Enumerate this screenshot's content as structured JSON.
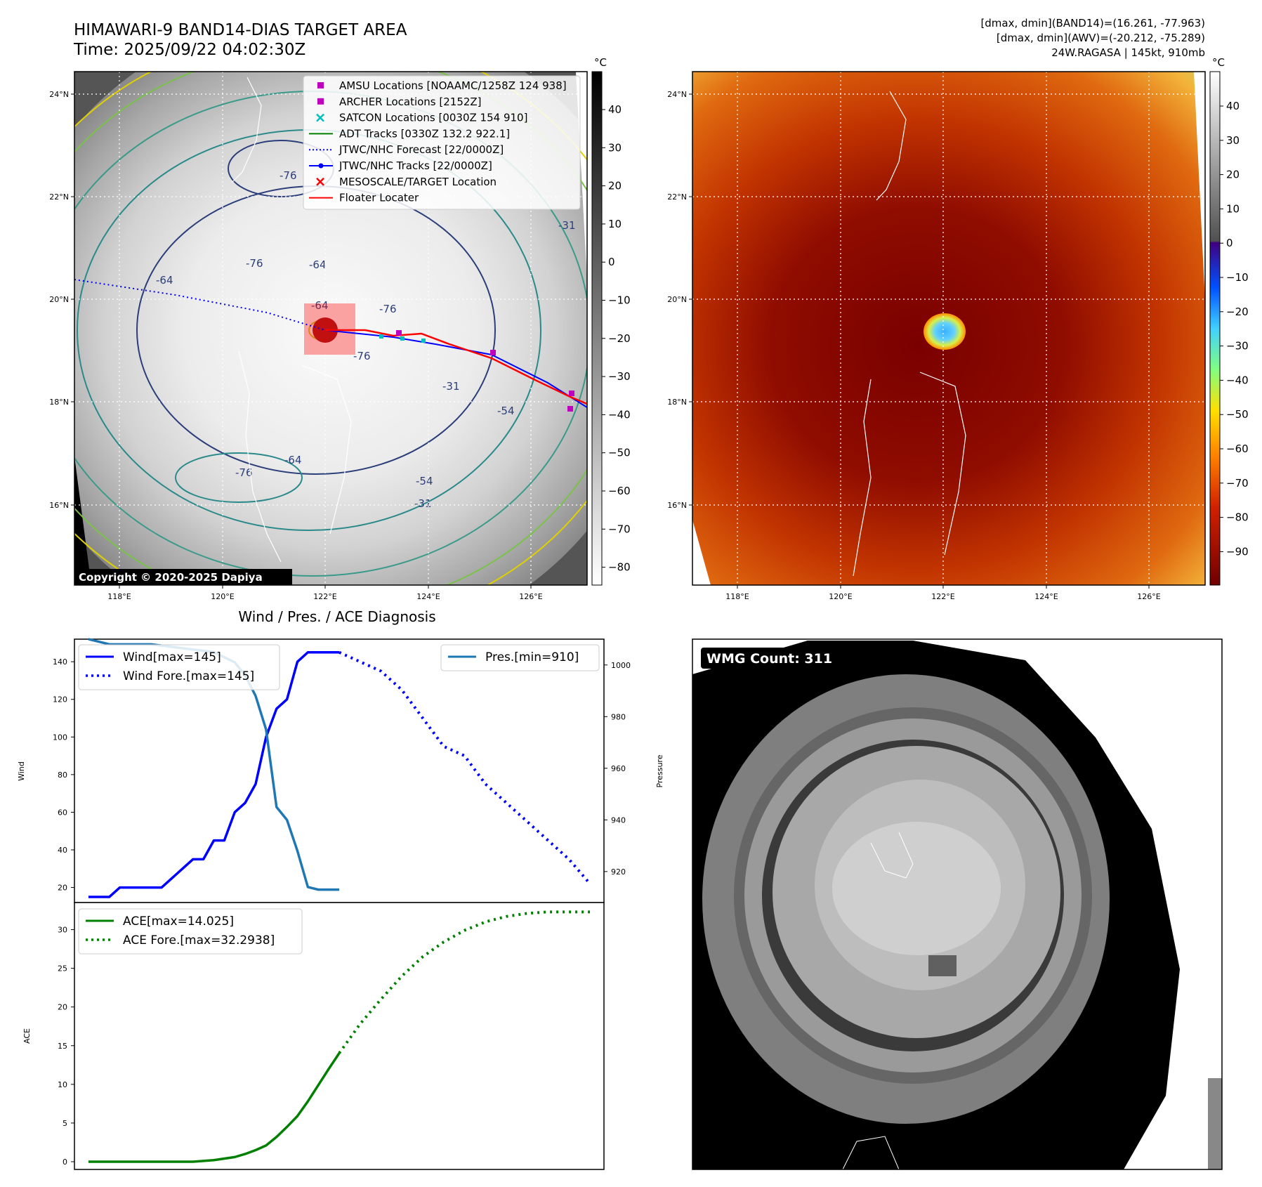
{
  "header": {
    "title_line1": "HIMAWARI-9 BAND14-DIAS TARGET AREA",
    "title_line2": "Time: 2025/09/22 04:02:30Z",
    "info_line1": "[dmax, dmin](BAND14)=(16.261, -77.963)",
    "info_line2": "[dmax, dmin](AWV)=(-20.212, -75.289)",
    "info_line3": "24W.RAGASA | 145kt, 910mb"
  },
  "map_axes": {
    "lon_ticks": [
      "118°E",
      "120°E",
      "122°E",
      "124°E",
      "126°E"
    ],
    "lat_ticks": [
      "24°N",
      "22°N",
      "20°N",
      "18°N",
      "16°N"
    ],
    "colorbar_unit": "°C",
    "ir_colorbar_ticks": [
      "40",
      "30",
      "20",
      "10",
      "0",
      "−10",
      "−20",
      "−30",
      "−40",
      "−50",
      "−60",
      "−70",
      "−80"
    ],
    "awv_colorbar_ticks": [
      "40",
      "30",
      "20",
      "10",
      "0",
      "−10",
      "−20",
      "−30",
      "−40",
      "−50",
      "−60",
      "−70",
      "−80",
      "−90"
    ],
    "contour_labels": [
      "-76",
      "-76",
      "-64",
      "-64",
      "-76",
      "-76",
      "-64",
      "-54",
      "-31",
      "-54",
      "-31",
      "-76",
      "-31",
      "-64"
    ],
    "copyright": "Copyright © 2020-2025 Dapiya"
  },
  "map_legend": [
    {
      "label": "AMSU Locations [NOAAMC/1258Z 124 938]",
      "color": "#bf00bf",
      "kind": "square"
    },
    {
      "label": "ARCHER Locations [2152Z]",
      "color": "#bf00bf",
      "kind": "square"
    },
    {
      "label": "SATCON Locations [0030Z 154 910]",
      "color": "#00bfbf",
      "kind": "x"
    },
    {
      "label": "ADT Tracks [0330Z 132.2 922.1]",
      "color": "#008000",
      "kind": "line"
    },
    {
      "label": "JTWC/NHC Forecast [22/0000Z]",
      "color": "#0000ff",
      "kind": "dotted"
    },
    {
      "label": "JTWC/NHC Tracks [22/0000Z]",
      "color": "#0000ff",
      "kind": "linedot"
    },
    {
      "label": "MESOSCALE/TARGET Location",
      "color": "#ff0000",
      "kind": "x"
    },
    {
      "label": "Floater Locater",
      "color": "#ff0000",
      "kind": "line"
    }
  ],
  "wmg": {
    "label": "WMG Count: 311"
  },
  "colors": {
    "wind": "#0000ff",
    "pres": "#1f77b4",
    "ace": "#008000"
  },
  "chart_data": [
    {
      "type": "line",
      "title": "Wind / Pres. / ACE Diagnosis",
      "ylabel": "Wind",
      "ylabel_right": "Pressure",
      "ylim": [
        12,
        152
      ],
      "ylim_right": [
        908,
        1010
      ],
      "x_range": [
        0,
        48
      ],
      "yticks": [
        20,
        40,
        60,
        80,
        100,
        120,
        140
      ],
      "yticks_right": [
        920,
        940,
        960,
        980,
        1000
      ],
      "series": [
        {
          "name": "Wind[max=145]",
          "axis": "left",
          "style": "solid",
          "x": [
            0,
            2,
            3,
            4,
            5,
            6,
            7,
            8,
            9,
            10,
            11,
            12,
            13,
            14,
            15,
            16,
            17,
            18,
            19,
            20,
            21,
            22,
            23,
            24
          ],
          "values": [
            15,
            15,
            20,
            20,
            20,
            20,
            20,
            25,
            30,
            35,
            35,
            45,
            45,
            60,
            65,
            75,
            100,
            115,
            120,
            140,
            145,
            145,
            145,
            145
          ]
        },
        {
          "name": "Wind Fore.[max=145]",
          "axis": "left",
          "style": "dotted",
          "x": [
            24,
            26,
            28,
            30,
            32,
            34,
            36,
            38,
            40,
            42,
            44,
            46,
            48
          ],
          "values": [
            145,
            140,
            135,
            125,
            110,
            95,
            90,
            75,
            65,
            55,
            45,
            35,
            22
          ]
        },
        {
          "name": "Pres.[min=910]",
          "axis": "right",
          "style": "solid",
          "x": [
            0,
            2,
            4,
            6,
            8,
            10,
            12,
            14,
            15,
            16,
            17,
            18,
            19,
            20,
            21,
            22,
            23,
            24
          ],
          "values": [
            1010,
            1008,
            1008,
            1008,
            1007,
            1006,
            1005,
            1001,
            996,
            988,
            975,
            945,
            940,
            928,
            914,
            913,
            913,
            913
          ]
        }
      ]
    },
    {
      "type": "line",
      "ylabel": "ACE",
      "ylim": [
        -1,
        33.5
      ],
      "x_range": [
        0,
        48
      ],
      "yticks": [
        0,
        5,
        10,
        15,
        20,
        25,
        30
      ],
      "series": [
        {
          "name": "ACE[max=14.025]",
          "style": "solid",
          "x": [
            0,
            4,
            8,
            10,
            12,
            14,
            15,
            16,
            17,
            18,
            19,
            20,
            21,
            22,
            23,
            24
          ],
          "values": [
            0,
            0,
            0,
            0,
            0.2,
            0.6,
            1,
            1.5,
            2.1,
            3.2,
            4.5,
            5.9,
            7.8,
            9.9,
            12,
            14.025
          ]
        },
        {
          "name": "ACE Fore.[max=32.2938]",
          "style": "dotted",
          "x": [
            24,
            26,
            28,
            30,
            32,
            34,
            36,
            38,
            40,
            42,
            44,
            46,
            48
          ],
          "values": [
            14.025,
            17.8,
            21,
            24,
            26.5,
            28.4,
            29.9,
            31,
            31.7,
            32.1,
            32.29,
            32.29,
            32.29
          ]
        }
      ]
    }
  ]
}
